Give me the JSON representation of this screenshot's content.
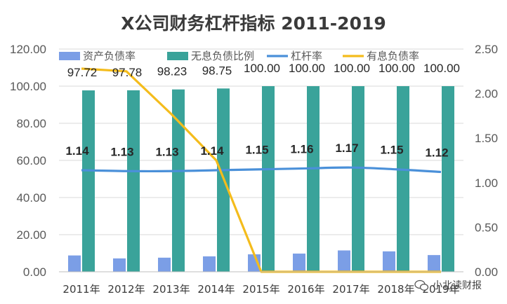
{
  "chart_data": {
    "type": "bar+line",
    "title": "X公司财务杠杆指标 2011-2019",
    "categories": [
      "2011年",
      "2012年",
      "2013年",
      "2014年",
      "2015年",
      "2016年",
      "2017年",
      "2018年",
      "2019年"
    ],
    "series": [
      {
        "name": "资产负债率",
        "type": "bar",
        "axis": "left",
        "color": "#7b9ee6",
        "values": [
          8.8,
          7.2,
          7.6,
          8.3,
          9.4,
          9.8,
          11.5,
          11.0,
          9.0
        ]
      },
      {
        "name": "无息负债比例",
        "type": "bar",
        "axis": "left",
        "color": "#3aa39a",
        "values": [
          97.72,
          97.78,
          98.23,
          98.75,
          100.0,
          100.0,
          100.0,
          100.0,
          100.0
        ],
        "labels": [
          "97.72",
          "97.78",
          "98.23",
          "98.75",
          "100.00",
          "100.00",
          "100.00",
          "100.00",
          "100.00"
        ]
      },
      {
        "name": "杠杆率",
        "type": "line",
        "axis": "right",
        "color": "#4a90d9",
        "values": [
          1.14,
          1.13,
          1.13,
          1.14,
          1.15,
          1.16,
          1.17,
          1.15,
          1.12
        ],
        "labels": [
          "1.14",
          "1.13",
          "1.13",
          "1.14",
          "1.15",
          "1.16",
          "1.17",
          "1.15",
          "1.12"
        ]
      },
      {
        "name": "有息负债率",
        "type": "line",
        "axis": "right",
        "color": "#f4bc1c",
        "values": [
          2.28,
          2.25,
          1.77,
          1.25,
          0.0,
          0.0,
          0.0,
          0.0,
          0.0
        ]
      }
    ],
    "y_left": {
      "range": [
        0,
        120
      ],
      "ticks": [
        "0.00",
        "20.00",
        "40.00",
        "60.00",
        "80.00",
        "100.00",
        "120.00"
      ]
    },
    "y_right": {
      "range": [
        0,
        2.5
      ],
      "ticks": [
        "0.00",
        "0.50",
        "1.00",
        "1.50",
        "2.00",
        "2.50"
      ]
    },
    "grid": true,
    "legend_position": "top"
  },
  "watermark": {
    "icon": "wechat-icon",
    "text": "小北读财报"
  }
}
